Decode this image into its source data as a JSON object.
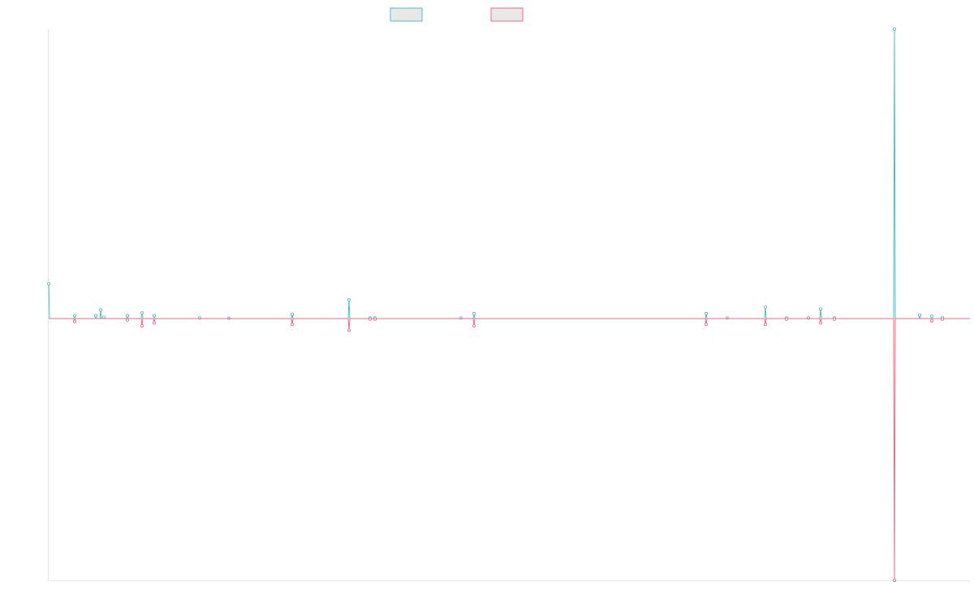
{
  "chart_data": {
    "type": "line",
    "title": "",
    "xlabel": "",
    "ylabel": "",
    "legend": {
      "placement": "top-center"
    },
    "grid": false,
    "x": [
      0,
      1,
      2,
      3,
      4,
      5,
      6,
      7,
      8,
      9,
      10,
      11,
      12,
      13,
      14,
      15,
      16,
      17,
      18,
      19,
      20,
      21,
      22,
      23,
      24,
      25,
      26,
      27,
      28,
      29,
      30,
      31,
      32,
      33,
      34,
      35,
      36,
      37,
      38,
      39,
      40,
      41,
      42,
      43,
      44,
      45,
      46,
      47,
      48,
      49,
      50,
      51,
      52,
      53,
      54,
      55,
      56,
      57,
      58,
      59,
      60,
      61,
      62,
      63,
      64,
      65,
      66,
      67,
      68,
      69,
      70,
      71,
      72,
      73,
      74,
      75,
      76,
      77,
      78,
      79,
      80,
      81,
      82,
      83,
      84,
      85,
      86,
      87,
      88,
      89,
      90,
      91,
      92,
      93,
      94,
      95,
      96,
      97,
      98,
      99,
      100,
      101,
      102,
      103,
      104,
      105,
      106,
      107,
      108,
      109,
      110,
      111,
      112,
      113,
      114,
      115,
      116,
      117,
      118,
      119,
      120,
      121,
      122,
      123,
      124,
      125,
      126,
      127,
      128,
      129,
      130,
      131,
      132,
      133,
      134,
      135,
      136,
      137,
      138,
      139,
      140,
      141,
      142,
      143,
      144,
      145,
      146,
      147,
      148,
      149,
      150,
      151,
      152,
      153,
      154,
      155,
      156,
      157,
      158,
      159,
      160,
      161,
      162,
      163,
      164,
      165,
      166,
      167,
      168,
      169,
      170,
      171,
      172,
      173,
      174,
      175,
      176,
      177,
      178,
      179,
      180,
      181,
      182,
      183,
      184,
      185,
      186,
      187,
      188,
      189,
      190,
      191,
      192,
      193,
      194,
      195,
      196,
      197,
      198,
      199,
      200,
      201,
      202,
      203,
      204,
      205,
      206,
      207,
      208,
      209,
      210,
      211,
      212,
      213,
      214,
      215,
      216,
      217,
      218,
      219,
      220,
      221,
      222,
      223,
      224,
      225,
      226,
      227,
      228,
      229,
      230,
      231,
      232,
      233,
      234,
      235,
      236,
      237,
      238,
      239,
      240,
      241,
      242,
      243,
      244,
      245,
      246,
      247,
      248,
      249,
      250,
      251,
      252,
      253,
      254,
      255,
      256,
      257,
      258,
      259,
      260,
      261,
      262,
      263,
      264,
      265,
      266,
      267,
      268,
      269,
      270,
      271,
      272,
      273,
      274,
      275,
      276,
      277,
      278,
      279,
      280,
      281,
      282,
      283,
      284,
      285,
      286,
      287,
      288,
      289,
      290,
      291,
      292,
      293,
      294,
      295,
      296,
      297,
      298,
      299,
      300,
      301,
      302,
      303,
      304,
      305,
      306,
      307,
      308,
      309,
      310,
      311,
      312,
      313,
      314,
      315,
      316,
      317,
      318,
      319,
      320,
      321,
      322,
      323,
      324,
      325,
      326,
      327,
      328,
      329,
      330,
      331,
      332,
      333,
      334,
      335,
      336,
      337,
      338,
      339,
      340,
      341,
      342,
      343,
      344,
      345,
      346,
      347,
      348,
      349,
      350,
      351,
      352,
      353,
      354,
      355,
      356,
      357,
      358,
      359,
      360,
      361,
      362,
      363,
      364,
      365,
      366,
      367,
      368,
      369,
      370,
      371,
      372,
      373,
      374,
      375,
      376,
      377,
      378,
      379,
      380,
      381,
      382,
      383,
      384,
      385,
      386,
      387,
      388,
      389,
      390,
      391,
      392,
      393,
      394,
      395,
      396,
      397,
      398,
      399,
      400,
      401,
      402,
      403,
      404,
      405,
      406,
      407,
      408,
      409,
      410,
      411,
      412,
      413,
      414,
      415,
      416,
      417,
      418,
      419,
      420,
      421,
      422,
      423,
      424,
      425,
      426,
      427,
      428,
      429,
      430,
      431,
      432,
      433,
      434,
      435,
      436,
      437,
      438,
      439,
      440,
      441,
      442,
      443,
      444,
      445,
      446,
      447,
      448,
      449,
      450,
      451,
      452,
      453,
      454,
      455,
      456,
      457,
      458,
      459,
      460,
      461,
      462,
      463,
      464,
      465,
      466,
      467,
      468,
      469,
      470,
      471,
      472,
      473,
      474,
      475,
      476,
      477,
      478,
      479,
      480,
      481,
      482,
      483,
      484,
      485,
      486,
      487,
      488,
      489,
      490,
      491,
      492,
      493,
      494,
      495,
      496,
      497,
      498,
      499,
      500,
      501,
      502,
      503,
      504,
      505,
      506,
      507,
      508,
      509,
      510,
      511,
      512,
      513,
      514,
      515,
      516,
      517,
      518,
      519,
      520,
      521,
      522,
      523,
      524,
      525,
      526,
      527,
      528,
      529,
      530,
      531,
      532,
      533,
      534,
      535,
      536,
      537,
      538,
      539,
      540,
      541,
      542,
      543,
      544,
      545,
      546,
      547,
      548,
      549,
      550,
      551,
      552,
      553,
      554,
      555,
      556,
      557,
      558,
      559,
      560,
      561,
      562,
      563,
      564,
      565,
      566,
      567,
      568,
      569,
      570,
      571,
      572,
      573,
      574,
      575,
      576,
      577,
      578,
      579,
      580,
      581,
      582,
      583,
      584,
      585,
      586,
      587,
      588,
      589,
      590,
      591,
      592,
      593,
      594,
      595,
      596,
      597,
      598,
      599,
      600,
      601,
      602,
      603,
      604,
      605,
      606,
      607,
      608,
      609,
      610,
      611,
      612,
      613,
      614,
      615,
      616,
      617,
      618,
      619,
      620,
      621,
      622,
      623,
      624,
      625,
      626,
      627,
      628,
      629,
      630,
      631,
      632,
      633,
      634,
      635,
      636,
      637,
      638,
      639,
      640,
      641,
      642,
      643,
      644,
      645,
      646,
      647,
      648,
      649,
      650,
      651,
      652,
      653,
      654,
      655,
      656,
      657,
      658,
      659,
      660,
      661,
      662,
      663,
      664,
      665,
      666,
      667,
      668,
      669,
      670,
      671,
      672,
      673,
      674,
      675,
      676,
      677,
      678,
      679,
      680,
      681,
      682,
      683,
      684,
      685,
      686,
      687,
      688,
      689,
      690,
      691,
      692,
      693,
      694,
      695,
      696,
      697,
      698,
      699,
      700,
      701,
      702,
      703,
      704,
      705,
      706,
      707,
      708,
      709,
      710,
      711,
      712,
      713,
      714,
      715,
      716,
      717,
      718,
      719,
      720,
      721,
      722,
      723,
      724,
      725,
      726,
      727,
      728,
      729,
      730,
      731,
      732,
      733,
      734,
      735,
      736,
      737,
      738,
      739,
      740,
      741,
      742,
      743,
      744,
      745,
      746,
      747,
      748,
      749,
      750,
      751,
      752,
      753,
      754,
      755,
      756,
      757,
      758,
      759,
      760,
      761,
      762,
      763,
      764,
      765,
      766,
      767,
      768,
      769,
      770,
      771,
      772,
      773,
      774,
      775,
      776,
      777,
      778,
      779,
      780,
      781,
      782,
      783,
      784,
      785,
      786,
      787,
      788,
      789,
      790,
      791,
      792,
      793,
      794,
      795,
      796,
      797,
      798,
      799,
      800,
      801,
      802,
      803,
      804,
      805,
      806,
      807,
      808,
      809,
      810,
      811,
      812,
      813,
      814,
      815,
      816,
      817,
      818,
      819,
      820,
      821,
      822,
      823,
      824,
      825,
      826,
      827,
      828,
      829,
      830,
      831,
      832,
      833,
      834,
      835,
      836,
      837,
      838,
      839,
      840,
      841,
      842,
      843,
      844,
      845,
      846,
      847,
      848,
      849,
      850,
      851,
      852,
      853,
      854,
      855,
      856,
      857,
      858,
      859,
      860,
      861,
      862,
      863,
      864,
      865,
      866,
      867,
      868,
      869,
      870,
      871,
      872,
      873,
      874,
      875,
      876,
      877,
      878,
      879,
      880,
      881,
      882,
      883,
      884,
      885,
      886,
      887,
      888,
      889,
      890,
      891,
      892,
      893,
      894,
      895,
      896,
      897,
      898,
      899,
      900,
      901,
      902,
      903,
      904,
      905,
      906,
      907,
      908,
      909,
      910,
      911,
      912,
      913,
      914,
      915,
      916,
      917,
      918,
      919,
      920,
      921,
      922,
      923,
      924,
      925,
      926,
      927,
      928,
      929,
      930,
      931,
      932,
      933,
      934,
      935,
      936,
      937,
      938,
      939,
      940,
      941,
      942,
      943,
      944,
      945,
      946,
      947,
      948,
      949,
      950,
      951,
      952,
      953,
      954,
      955,
      956,
      957,
      958,
      959,
      960,
      961,
      962,
      963,
      964,
      965,
      966,
      967,
      968,
      969,
      970,
      971,
      972,
      973,
      974,
      975,
      976,
      977,
      978,
      979,
      980,
      981,
      982,
      983,
      984,
      985,
      986,
      987,
      988,
      989,
      990,
      991,
      992,
      993,
      994,
      995,
      996,
      997,
      998,
      999,
      1000,
      1001,
      1002,
      1003,
      1004,
      1005,
      1006,
      1007,
      1008,
      1009,
      1010,
      1011,
      1012,
      1013,
      1014,
      1015,
      1016,
      1017,
      1018,
      1019,
      1020,
      1021,
      1022,
      1023,
      1024,
      1025,
      1026,
      1027,
      1028,
      1029,
      1030,
      1031,
      1032,
      1033,
      1034,
      1035,
      1036,
      1037,
      1038,
      1039,
      1040,
      1041,
      1042,
      1043,
      1044,
      1045,
      1046,
      1047,
      1048,
      1049,
      1050,
      1051,
      1052,
      1053,
      1054,
      1055,
      1056,
      1057,
      1058,
      1059,
      1060,
      1061,
      1062,
      1063,
      1064,
      1065,
      1066,
      1067,
      1068,
      1069,
      1070,
      1071,
      1072,
      1073,
      1074,
      1075,
      1076,
      1077,
      1078,
      1079,
      1080,
      1081,
      1082,
      1083,
      1084,
      1085,
      1086,
      1087,
      1088,
      1089,
      1090,
      1091,
      1092,
      1093,
      1094,
      1095,
      1096,
      1097,
      1098,
      1099,
      1100,
      1101,
      1102,
      1103,
      1104,
      1105,
      1106,
      1107,
      1108,
      1109,
      1110,
      1111,
      1112,
      1113,
      1114,
      1115,
      1116,
      1117,
      1118,
      1119,
      1120,
      1121,
      1122,
      1123,
      1124,
      1125,
      1126,
      1127,
      1128,
      1129,
      1130,
      1131,
      1132,
      1133,
      1134,
      1135
    ],
    "ylim": [
      -0.9,
      1.0
    ],
    "xlim": [
      0,
      1135
    ],
    "series": [
      {
        "color": "#4bc0c0",
        "spikes": [
          [
            0,
            0.12
          ],
          [
            32,
            0.01
          ],
          [
            58,
            0.01
          ],
          [
            64,
            0.03
          ],
          [
            68,
            0.005
          ],
          [
            97,
            0.01
          ],
          [
            115,
            0.02
          ],
          [
            130,
            0.01
          ],
          [
            186,
            0.002
          ],
          [
            222,
            0.001
          ],
          [
            300,
            0.015
          ],
          [
            370,
            0.065
          ],
          [
            396,
            0.002
          ],
          [
            402,
            0.002
          ],
          [
            508,
            0.002
          ],
          [
            524,
            0.017
          ],
          [
            810,
            0.017
          ],
          [
            836,
            0.002
          ],
          [
            883,
            0.04
          ],
          [
            909,
            0.002
          ],
          [
            936,
            0.002
          ],
          [
            951,
            0.033
          ],
          [
            968,
            0.002
          ],
          [
            1042,
            1.0
          ],
          [
            1073,
            0.012
          ],
          [
            1088,
            0.008
          ],
          [
            1101,
            0.004
          ]
        ]
      },
      {
        "color": "#ff6384",
        "spikes": [
          [
            32,
            -0.01
          ],
          [
            97,
            -0.005
          ],
          [
            115,
            -0.025
          ],
          [
            130,
            -0.015
          ],
          [
            300,
            -0.02
          ],
          [
            370,
            -0.04
          ],
          [
            396,
            -0.002
          ],
          [
            402,
            -0.002
          ],
          [
            524,
            -0.025
          ],
          [
            810,
            -0.02
          ],
          [
            883,
            -0.02
          ],
          [
            909,
            -0.002
          ],
          [
            951,
            -0.015
          ],
          [
            968,
            -0.002
          ],
          [
            1042,
            -0.9
          ],
          [
            1088,
            -0.008
          ],
          [
            1101,
            -0.002
          ]
        ]
      }
    ]
  }
}
